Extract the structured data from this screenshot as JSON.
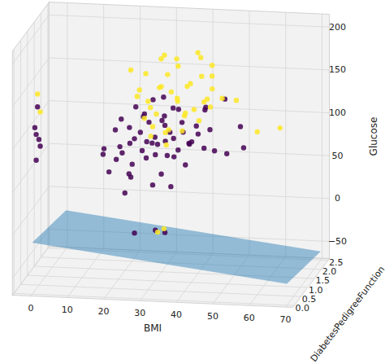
{
  "chart_data": {
    "type": "scatter3d",
    "x_label": "BMI",
    "y_label": "DiabetesPedigreeFunction",
    "z_label": "Glucose",
    "xlim": [
      -5,
      72
    ],
    "xticks": [
      0,
      10,
      20,
      30,
      40,
      50,
      60,
      70
    ],
    "ylim": [
      -0.1,
      2.6
    ],
    "yticks": [
      {
        "value": 0,
        "label": "0.0"
      },
      0.5,
      {
        "value": 1,
        "label": "1.0"
      },
      1.5,
      {
        "value": 2,
        "label": "2.0"
      },
      2.5
    ],
    "zlim": [
      -70,
      215
    ],
    "zticks": [
      {
        "value": -50,
        "label": "−50"
      },
      0,
      50,
      100,
      150,
      200
    ],
    "grid": true,
    "plane": {
      "x": [
        0,
        70
      ],
      "y": [
        0,
        2.5
      ],
      "z": [
        [
          -10,
          -25
        ],
        [
          -45,
          -60
        ]
      ],
      "color": "#1f77b4"
    },
    "series": [
      {
        "color": "#440154",
        "points": [
          [
            0,
            0.3,
            80
          ],
          [
            0,
            0.5,
            100
          ],
          [
            0,
            0.2,
            120
          ],
          [
            0,
            0.4,
            140
          ],
          [
            0,
            0.6,
            90
          ],
          [
            0,
            0.3,
            110
          ],
          [
            27,
            0.3,
            0
          ],
          [
            32,
            0.5,
            0
          ],
          [
            35,
            0.4,
            0
          ],
          [
            22,
            0.3,
            85
          ],
          [
            24,
            0.2,
            95
          ],
          [
            25,
            0.5,
            100
          ],
          [
            26,
            0.4,
            78
          ],
          [
            27,
            0.3,
            110
          ],
          [
            28,
            0.6,
            90
          ],
          [
            29,
            0.2,
            120
          ],
          [
            30,
            0.4,
            105
          ],
          [
            30,
            0.8,
            95
          ],
          [
            31,
            0.3,
            130
          ],
          [
            32,
            0.5,
            88
          ],
          [
            33,
            0.2,
            115
          ],
          [
            34,
            0.7,
            100
          ],
          [
            35,
            0.4,
            125
          ],
          [
            36,
            0.3,
            92
          ],
          [
            37,
            0.5,
            108
          ],
          [
            38,
            0.6,
            140
          ],
          [
            39,
            0.3,
            99
          ],
          [
            40,
            0.4,
            118
          ],
          [
            42,
            0.5,
            105
          ],
          [
            44,
            0.3,
            128
          ],
          [
            45,
            0.6,
            96
          ],
          [
            46,
            0.4,
            145
          ],
          [
            20,
            0.3,
            70
          ],
          [
            21,
            0.5,
            115
          ],
          [
            23,
            0.4,
            130
          ],
          [
            24,
            0.7,
            60
          ],
          [
            26,
            0.3,
            65
          ],
          [
            28,
            0.9,
            75
          ],
          [
            30,
            1.2,
            85
          ],
          [
            32,
            0.3,
            57
          ],
          [
            34,
            0.4,
            68
          ],
          [
            36,
            0.8,
            80
          ],
          [
            38,
            0.2,
            150
          ],
          [
            41,
            0.3,
            82
          ],
          [
            43,
            0.7,
            110
          ],
          [
            47,
            0.5,
            120
          ],
          [
            49,
            0.3,
            100
          ],
          [
            52,
            0.4,
            95
          ],
          [
            55,
            0.6,
            123
          ],
          [
            57,
            0.3,
            105
          ],
          [
            19,
            0.2,
            99
          ],
          [
            18,
            0.4,
            88
          ],
          [
            25,
            1.5,
            110
          ],
          [
            29,
            1.8,
            100
          ],
          [
            33,
            2.2,
            90
          ],
          [
            35,
            0.3,
            160
          ],
          [
            27,
            0.4,
            145
          ],
          [
            31,
            0.6,
            150
          ],
          [
            44,
            1.0,
            135
          ],
          [
            39,
            1.1,
            90
          ],
          [
            50,
            0.8,
            150
          ],
          [
            23,
            0.3,
            100
          ],
          [
            36,
            0.5,
            115
          ],
          [
            33,
            0.9,
            125
          ],
          [
            29,
            0.5,
            135
          ],
          [
            41,
            0.6,
            100
          ],
          [
            26,
            0.2,
            125
          ],
          [
            24,
            0.4,
            44
          ],
          [
            37,
            0.3,
            56
          ]
        ]
      },
      {
        "color": "#fde725",
        "points": [
          [
            0,
            0.6,
            130
          ],
          [
            0,
            0.4,
            155
          ],
          [
            33,
            0.4,
            0
          ],
          [
            34,
            0.6,
            0
          ],
          [
            67,
            0.3,
            130
          ],
          [
            60,
            0.5,
            120
          ],
          [
            55,
            0.3,
            160
          ],
          [
            30,
            0.5,
            150
          ],
          [
            32,
            0.8,
            160
          ],
          [
            34,
            0.4,
            170
          ],
          [
            35,
            0.6,
            180
          ],
          [
            36,
            1.0,
            190
          ],
          [
            38,
            0.5,
            155
          ],
          [
            40,
            0.7,
            165
          ],
          [
            42,
            0.4,
            175
          ],
          [
            43,
            0.9,
            195
          ],
          [
            45,
            0.6,
            150
          ],
          [
            33,
            0.3,
            140
          ],
          [
            31,
            1.2,
            185
          ],
          [
            37,
            0.8,
            145
          ],
          [
            39,
            0.3,
            197
          ],
          [
            41,
            1.5,
            160
          ],
          [
            28,
            0.4,
            165
          ],
          [
            29,
            0.6,
            180
          ],
          [
            27,
            0.5,
            155
          ],
          [
            26,
            0.3,
            190
          ],
          [
            44,
            0.5,
            130
          ],
          [
            46,
            0.8,
            140
          ],
          [
            48,
            0.4,
            170
          ],
          [
            50,
            0.6,
            155
          ],
          [
            36,
            0.4,
            120
          ],
          [
            34,
            0.7,
            110
          ],
          [
            38,
            1.1,
            125
          ],
          [
            40,
            0.5,
            135
          ],
          [
            32,
            0.3,
            125
          ],
          [
            30,
            0.7,
            105
          ],
          [
            35,
            0.5,
            100
          ],
          [
            42,
            2.0,
            150
          ],
          [
            37,
            2.3,
            170
          ],
          [
            33,
            0.9,
            196
          ],
          [
            31,
            0.4,
            145
          ],
          [
            39,
            0.6,
            115
          ],
          [
            45,
            1.2,
            180
          ],
          [
            47,
            0.3,
            160
          ],
          [
            29,
            0.5,
            130
          ],
          [
            43,
            0.4,
            145
          ],
          [
            36,
            0.6,
            160
          ]
        ]
      }
    ]
  }
}
